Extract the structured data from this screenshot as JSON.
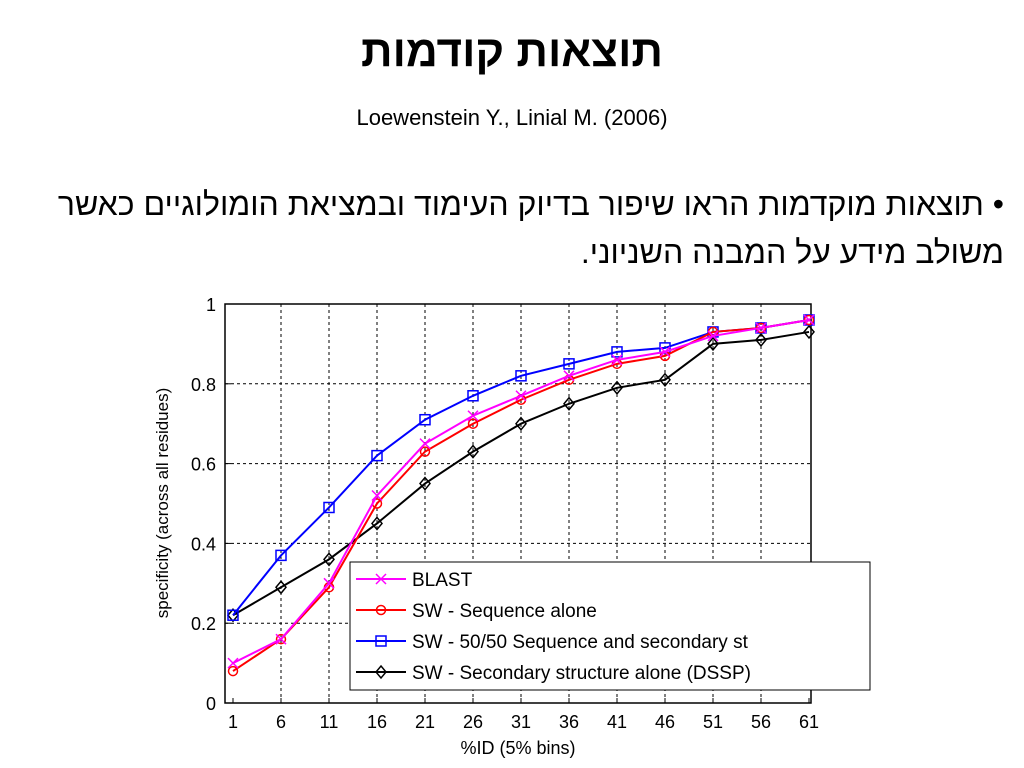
{
  "slide": {
    "title": "תוצאות קודמות",
    "subtitle": "Loewenstein Y., Linial M. (2006)",
    "bullet": "• תוצאות מוקדמות הראו שיפור בדיוק העימוד ובמציאת הומולוגיים כאשר משולב מידע על המבנה השניוני."
  },
  "chart_data": {
    "type": "line",
    "title": "",
    "xlabel": "%ID (5% bins)",
    "ylabel": "specificity (across all residues)",
    "x": [
      1,
      6,
      11,
      16,
      21,
      26,
      31,
      36,
      41,
      46,
      51,
      56,
      61
    ],
    "xlim": [
      1,
      61
    ],
    "ylim": [
      0,
      1
    ],
    "yticks": [
      "0",
      "0.2",
      "0.4",
      "0.6",
      "0.8",
      "1"
    ],
    "grid": true,
    "legend_position": "bottom-right",
    "series": [
      {
        "name": "BLAST",
        "color": "#ff00ff",
        "marker": "x",
        "values": [
          0.1,
          0.16,
          0.3,
          0.52,
          0.65,
          0.72,
          0.77,
          0.82,
          0.86,
          0.88,
          0.92,
          0.94,
          0.96
        ]
      },
      {
        "name": "SW - Sequence alone",
        "color": "#ff0000",
        "marker": "circle",
        "values": [
          0.08,
          0.16,
          0.29,
          0.5,
          0.63,
          0.7,
          0.76,
          0.81,
          0.85,
          0.87,
          0.93,
          0.94,
          0.96
        ]
      },
      {
        "name": "SW - 50/50 Sequence and secondary st",
        "color": "#0000ff",
        "marker": "square",
        "values": [
          0.22,
          0.37,
          0.49,
          0.62,
          0.71,
          0.77,
          0.82,
          0.85,
          0.88,
          0.89,
          0.93,
          0.94,
          0.96
        ]
      },
      {
        "name": "SW - Secondary structure alone (DSSP)",
        "color": "#000000",
        "marker": "diamond",
        "values": [
          0.22,
          0.29,
          0.36,
          0.45,
          0.55,
          0.63,
          0.7,
          0.75,
          0.79,
          0.81,
          0.9,
          0.91,
          0.93
        ]
      }
    ]
  }
}
